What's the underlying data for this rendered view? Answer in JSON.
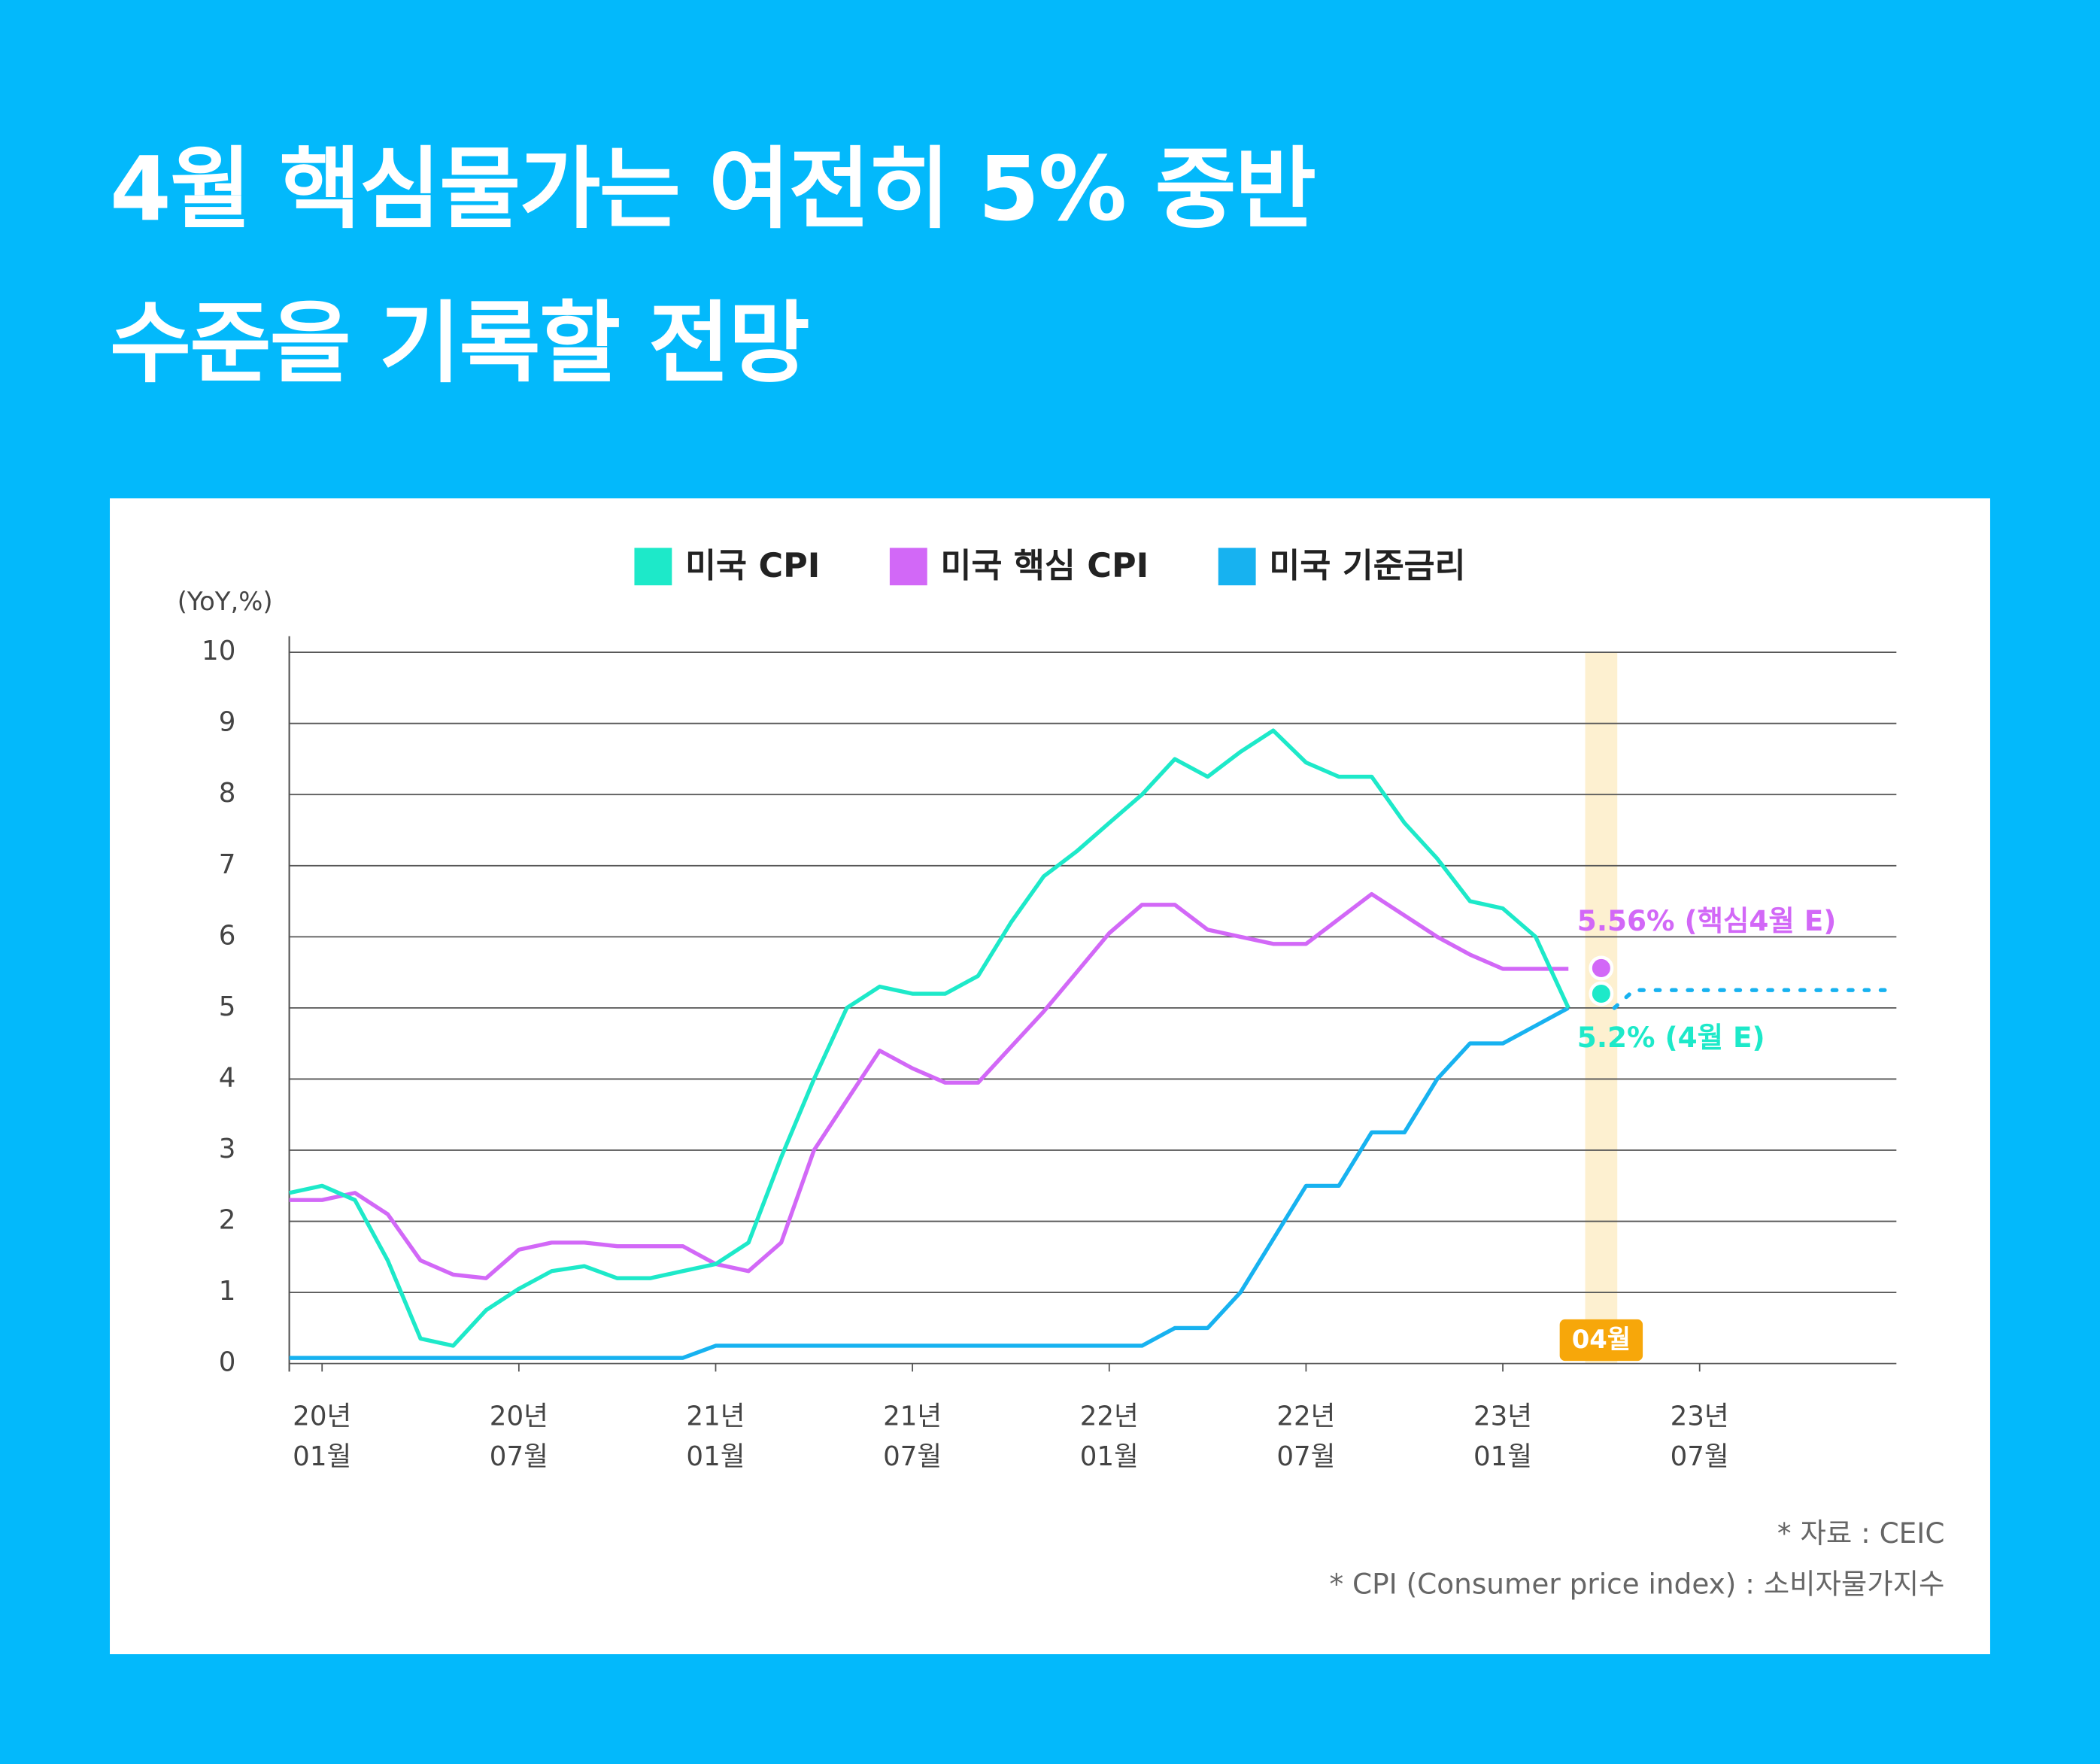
{
  "title": "4월 핵심물가는 여전히 5% 중반\n수준을 기록할 전망",
  "chart_data": {
    "type": "line",
    "y_label": "(YoY,%)",
    "x": [
      -1,
      0,
      1,
      2,
      3,
      4,
      5,
      6,
      7,
      8,
      9,
      10,
      11,
      12,
      13,
      14,
      15,
      16,
      17,
      18,
      19,
      20,
      21,
      22,
      23,
      24,
      25,
      26,
      27,
      28,
      29,
      30,
      31,
      32,
      33,
      34,
      35,
      36,
      37,
      38
    ],
    "series": [
      {
        "name": "미국 CPI",
        "color": "#1de9c9",
        "values": [
          2.4,
          2.5,
          2.3,
          1.45,
          0.35,
          0.25,
          0.75,
          1.05,
          1.3,
          1.37,
          1.2,
          1.2,
          1.3,
          1.4,
          1.7,
          2.9,
          4.0,
          5.0,
          5.3,
          5.2,
          5.2,
          5.45,
          6.2,
          6.85,
          7.2,
          7.6,
          8.0,
          8.5,
          8.25,
          8.6,
          8.9,
          8.45,
          8.25,
          8.25,
          7.6,
          7.1,
          6.5,
          6.4,
          6.0,
          5.0
        ]
      },
      {
        "name": "미국 핵심 CPI",
        "color": "#d268f7",
        "values": [
          2.3,
          2.3,
          2.4,
          2.1,
          1.45,
          1.25,
          1.2,
          1.6,
          1.7,
          1.7,
          1.65,
          1.65,
          1.65,
          1.4,
          1.3,
          1.7,
          3.0,
          3.7,
          4.4,
          4.15,
          3.95,
          3.95,
          4.45,
          4.95,
          5.5,
          6.05,
          6.45,
          6.45,
          6.1,
          6.0,
          5.9,
          5.9,
          6.25,
          6.6,
          6.3,
          6.0,
          5.75,
          5.55,
          5.55,
          5.55
        ]
      },
      {
        "name": "미국 기준금리",
        "color": "#17b2f0",
        "values": [
          0.08,
          0.08,
          0.08,
          0.08,
          0.08,
          0.08,
          0.08,
          0.08,
          0.08,
          0.08,
          0.08,
          0.08,
          0.08,
          0.25,
          0.25,
          0.25,
          0.25,
          0.25,
          0.25,
          0.25,
          0.25,
          0.25,
          0.25,
          0.25,
          0.25,
          0.25,
          0.25,
          0.5,
          0.5,
          1.0,
          1.75,
          2.5,
          2.5,
          3.25,
          3.25,
          4.0,
          4.5,
          4.5,
          4.75,
          5.0
        ]
      }
    ],
    "projection": {
      "x": [
        39.4,
        40,
        48
      ],
      "values": [
        5.0,
        5.25,
        5.25
      ]
    },
    "annotations": [
      {
        "x": 39,
        "y": 5.56,
        "label": "5.56% (핵심4월 E)",
        "color": "#d268f7"
      },
      {
        "x": 39,
        "y": 5.2,
        "label": "5.2% (4월 E)",
        "color": "#1de9c9"
      }
    ],
    "highlight": {
      "x": 39,
      "label": "04월"
    },
    "xlim": [
      -1,
      48
    ],
    "xticks": [
      {
        "value": 0,
        "label": "20년\n01월"
      },
      {
        "value": 6,
        "label": "20년\n07월"
      },
      {
        "value": 12,
        "label": "21년\n01월"
      },
      {
        "value": 18,
        "label": "21년\n07월"
      },
      {
        "value": 24,
        "label": "22년\n01월"
      },
      {
        "value": 30,
        "label": "22년\n07월"
      },
      {
        "value": 36,
        "label": "23년\n01월"
      },
      {
        "value": 42,
        "label": "23년\n07월"
      }
    ],
    "ylim": [
      0,
      10
    ],
    "yticks": [
      0,
      1,
      2,
      3,
      4,
      5,
      6,
      7,
      8,
      9,
      10
    ],
    "grid": true,
    "notes": [
      "* 자료 : CEIC",
      "* CPI (Consumer price index) : 소비자물가지수"
    ]
  }
}
